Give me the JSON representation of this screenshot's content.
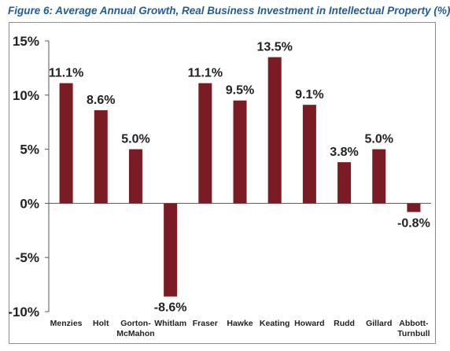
{
  "title": "Figure 6: Average Annual Growth, Real Business Investment in Intellectual Property (%)",
  "chart_data": {
    "type": "bar",
    "categories": [
      [
        "Menzies"
      ],
      [
        "Holt"
      ],
      [
        "Gorton-",
        "McMahon"
      ],
      [
        "Whitlam"
      ],
      [
        "Fraser"
      ],
      [
        "Hawke"
      ],
      [
        "Keating"
      ],
      [
        "Howard"
      ],
      [
        "Rudd"
      ],
      [
        "Gillard"
      ],
      [
        "Abbott-",
        "Turnbull"
      ]
    ],
    "values": [
      11.1,
      8.6,
      5.0,
      -8.6,
      11.1,
      9.5,
      13.5,
      9.1,
      3.8,
      5.0,
      -0.8
    ],
    "data_labels": [
      "11.1%",
      "8.6%",
      "5.0%",
      "-8.6%",
      "11.1%",
      "9.5%",
      "13.5%",
      "9.1%",
      "3.8%",
      "5.0%",
      "-0.8%"
    ],
    "ylim": [
      -10,
      15
    ],
    "yticks": [
      15,
      10,
      5,
      0,
      -5,
      -10
    ],
    "ytick_labels": [
      "15%",
      "10%",
      "5%",
      "0%",
      "-5%",
      "-10%"
    ],
    "grid": false,
    "bar_color": "#7b1c24",
    "title_color": "#1f5c99"
  }
}
